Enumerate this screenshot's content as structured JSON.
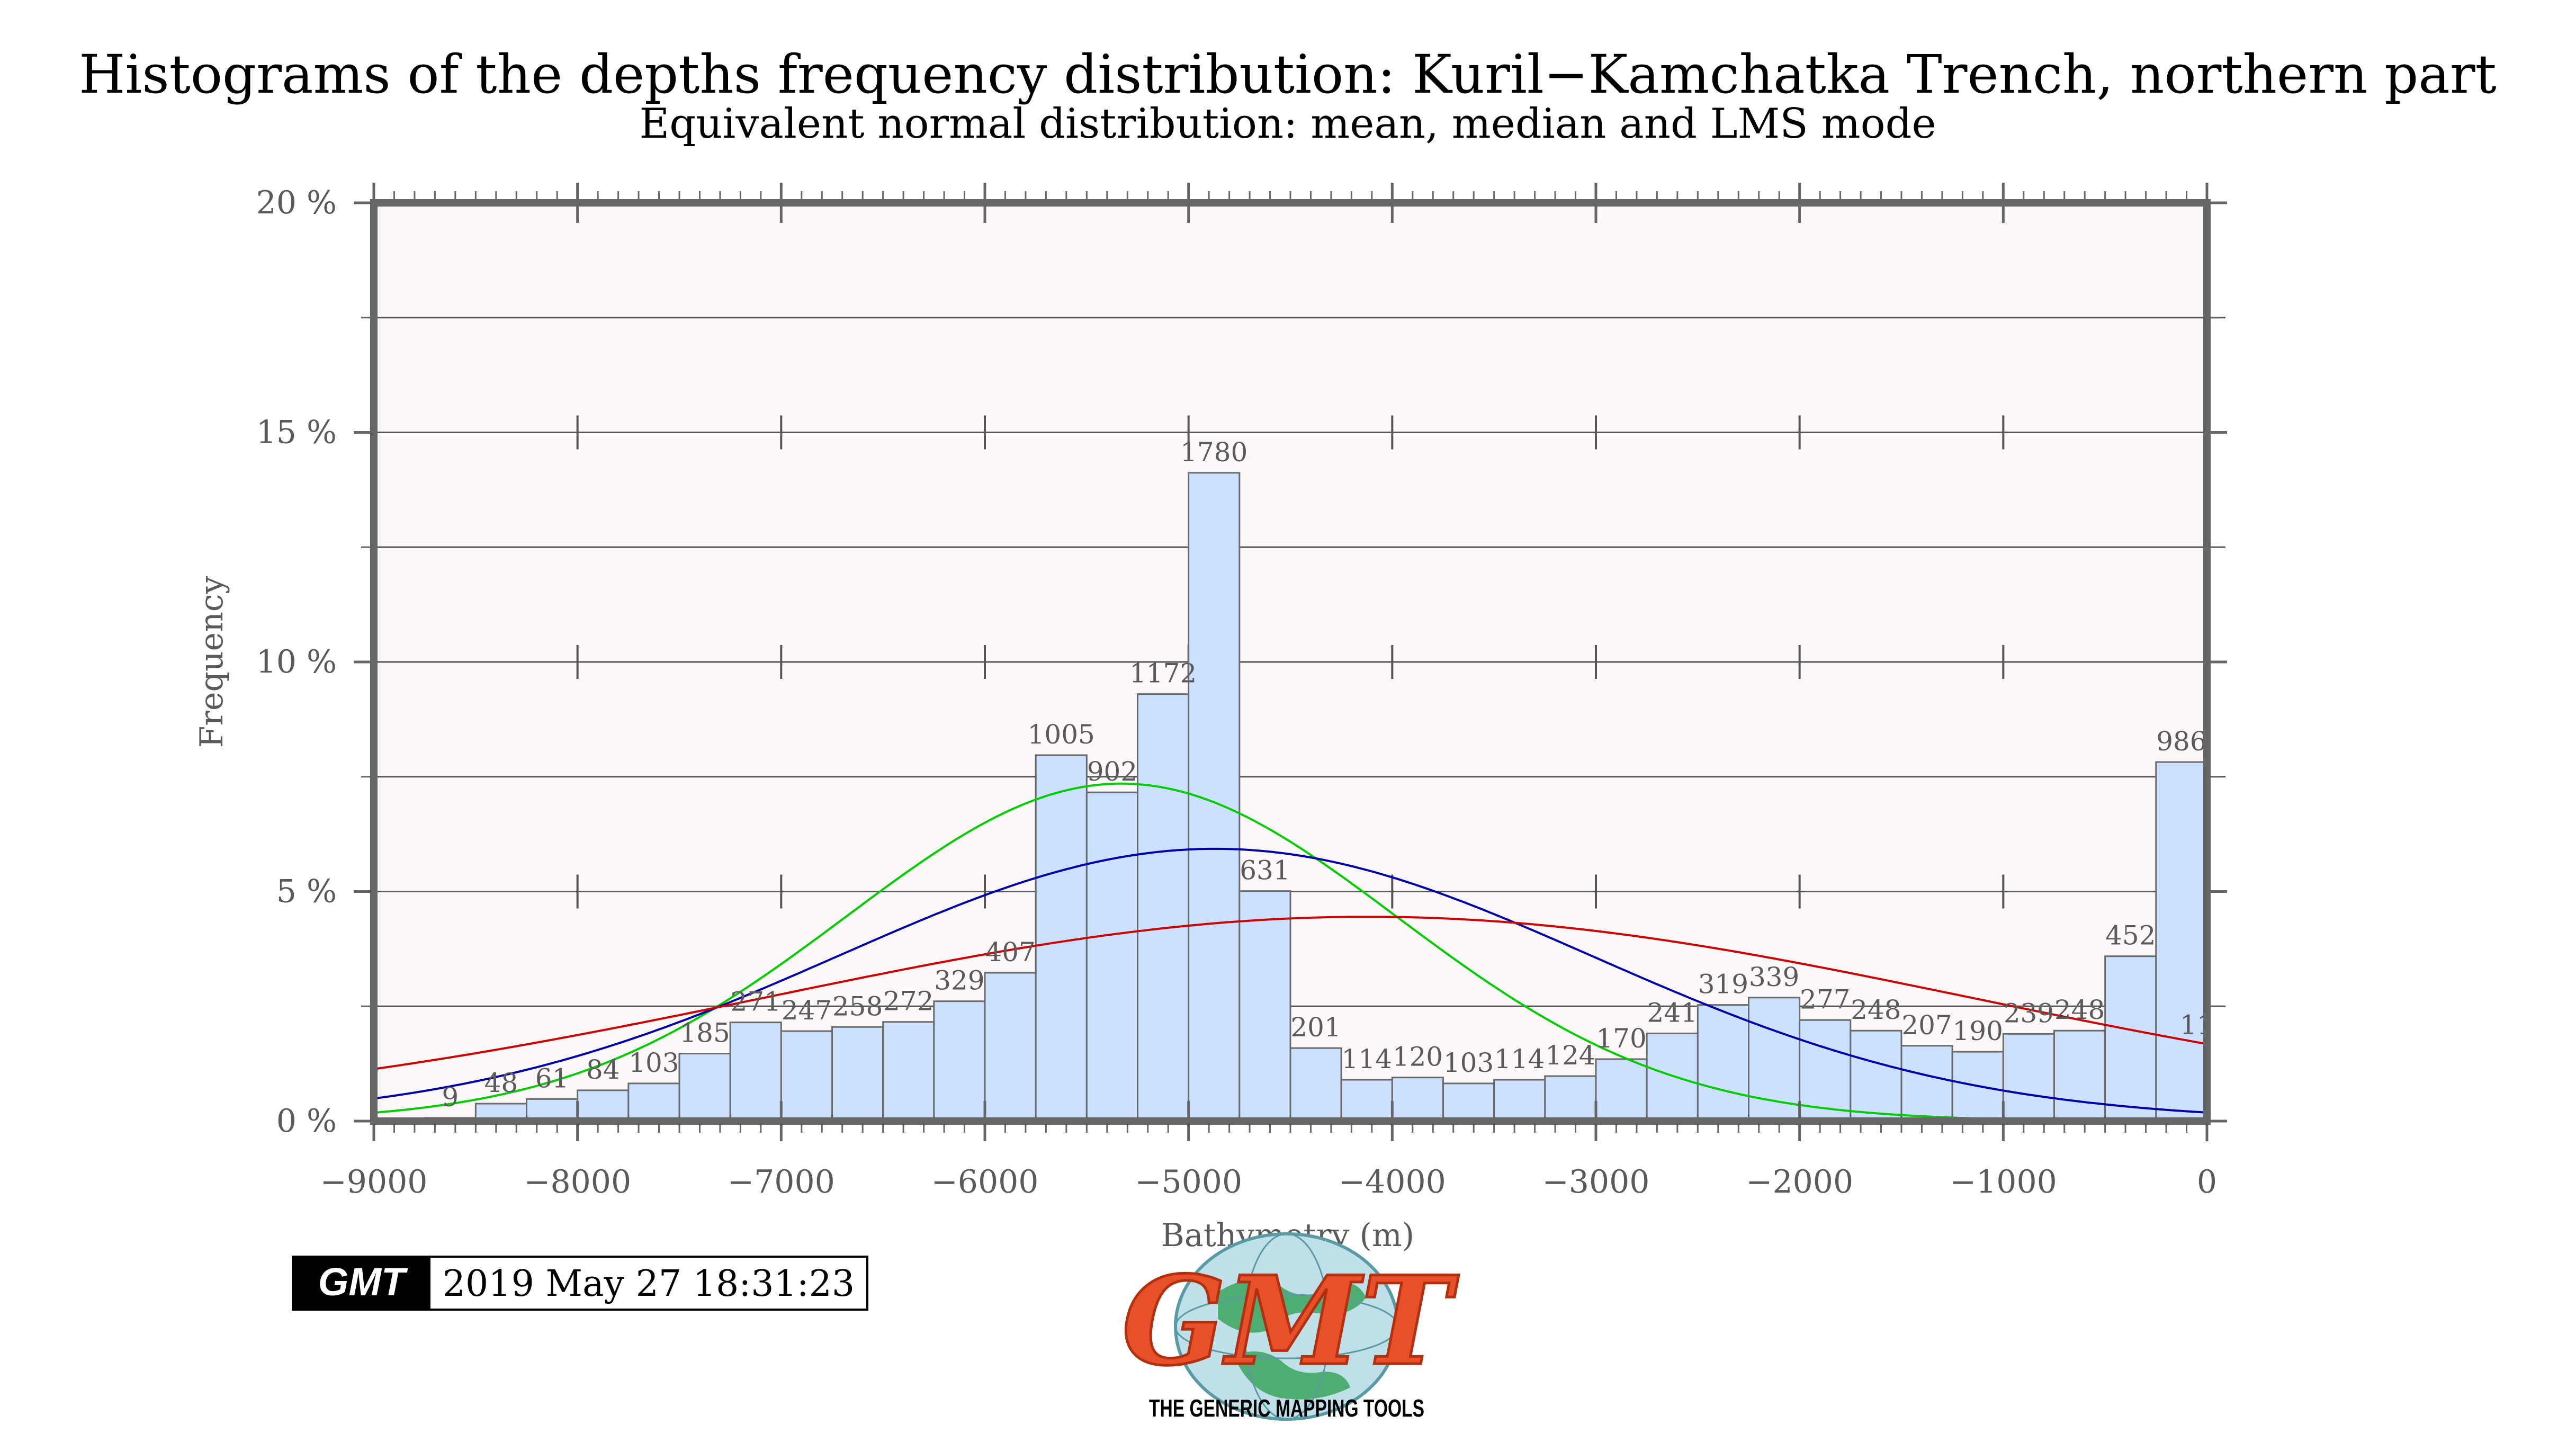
{
  "chart_data": {
    "type": "bar",
    "title": "Histograms of the depths frequency distribution: Kuril−Kamchatka Trench, northern part",
    "subtitle": "Equivalent normal distribution: mean, median and LMS mode",
    "xlabel": "Bathymetry (m)",
    "ylabel": "Frequency",
    "xlim": [
      -9000,
      0
    ],
    "ylim": [
      0,
      20
    ],
    "bin_width": 250,
    "x_ticks": [
      -9000,
      -8000,
      -7000,
      -6000,
      -5000,
      -4000,
      -3000,
      -2000,
      -1000,
      0
    ],
    "x_tick_labels": [
      "−9000",
      "−8000",
      "−7000",
      "−6000",
      "−5000",
      "−4000",
      "−3000",
      "−2000",
      "−1000",
      "0"
    ],
    "y_ticks": [
      0,
      5,
      10,
      15,
      20
    ],
    "y_tick_labels": [
      "0 %",
      "5 %",
      "10 %",
      "15 %",
      "20 %"
    ],
    "grid": true,
    "bins": [
      {
        "start": -8750,
        "end": -8500,
        "count_label": "9",
        "percent": 0.07
      },
      {
        "start": -8500,
        "end": -8250,
        "count_label": "48",
        "percent": 0.38
      },
      {
        "start": -8250,
        "end": -8000,
        "count_label": "61",
        "percent": 0.48
      },
      {
        "start": -8000,
        "end": -7750,
        "count_label": "84",
        "percent": 0.67
      },
      {
        "start": -7750,
        "end": -7500,
        "count_label": "103",
        "percent": 0.82
      },
      {
        "start": -7500,
        "end": -7250,
        "count_label": "185",
        "percent": 1.47
      },
      {
        "start": -7250,
        "end": -7000,
        "count_label": "271",
        "percent": 2.15
      },
      {
        "start": -7000,
        "end": -6750,
        "count_label": "247",
        "percent": 1.96
      },
      {
        "start": -6750,
        "end": -6500,
        "count_label": "258",
        "percent": 2.05
      },
      {
        "start": -6500,
        "end": -6250,
        "count_label": "272",
        "percent": 2.16
      },
      {
        "start": -6250,
        "end": -6000,
        "count_label": "329",
        "percent": 2.61
      },
      {
        "start": -6000,
        "end": -5750,
        "count_label": "407",
        "percent": 3.23
      },
      {
        "start": -5750,
        "end": -5500,
        "count_label": "1005",
        "percent": 7.97
      },
      {
        "start": -5500,
        "end": -5250,
        "count_label": "902",
        "percent": 7.16
      },
      {
        "start": -5250,
        "end": -5000,
        "count_label": "1172",
        "percent": 9.3
      },
      {
        "start": -5000,
        "end": -4750,
        "count_label": "1780",
        "percent": 14.12
      },
      {
        "start": -4750,
        "end": -4500,
        "count_label": "631",
        "percent": 5.01
      },
      {
        "start": -4500,
        "end": -4250,
        "count_label": "201",
        "percent": 1.59
      },
      {
        "start": -4250,
        "end": -4000,
        "count_label": "114",
        "percent": 0.9
      },
      {
        "start": -4000,
        "end": -3750,
        "count_label": "120",
        "percent": 0.95
      },
      {
        "start": -3750,
        "end": -3500,
        "count_label": "103",
        "percent": 0.82
      },
      {
        "start": -3500,
        "end": -3250,
        "count_label": "114",
        "percent": 0.9
      },
      {
        "start": -3250,
        "end": -3000,
        "count_label": "124",
        "percent": 0.98
      },
      {
        "start": -3000,
        "end": -2750,
        "count_label": "170",
        "percent": 1.35
      },
      {
        "start": -2750,
        "end": -2500,
        "count_label": "241",
        "percent": 1.91
      },
      {
        "start": -2500,
        "end": -2250,
        "count_label": "319",
        "percent": 2.53
      },
      {
        "start": -2250,
        "end": -2000,
        "count_label": "339",
        "percent": 2.69
      },
      {
        "start": -2000,
        "end": -1750,
        "count_label": "277",
        "percent": 2.2
      },
      {
        "start": -1750,
        "end": -1500,
        "count_label": "248",
        "percent": 1.97
      },
      {
        "start": -1500,
        "end": -1250,
        "count_label": "207",
        "percent": 1.64
      },
      {
        "start": -1250,
        "end": -1000,
        "count_label": "190",
        "percent": 1.51
      },
      {
        "start": -1000,
        "end": -750,
        "count_label": "239",
        "percent": 1.9
      },
      {
        "start": -750,
        "end": -500,
        "count_label": "248",
        "percent": 1.97
      },
      {
        "start": -500,
        "end": -250,
        "count_label": "452",
        "percent": 3.59
      },
      {
        "start": -250,
        "end": 0,
        "count_label": "986",
        "percent": 7.82
      }
    ],
    "extra_labels": [
      {
        "text": "11",
        "x": -50,
        "y": 1.9
      }
    ],
    "curves": [
      {
        "color": "#00cc00",
        "mean": -5330,
        "sigma": 1350,
        "peak": 7.35
      },
      {
        "color": "#0000aa",
        "mean": -4870,
        "sigma": 1850,
        "peak": 5.93
      },
      {
        "color": "#cc0000",
        "mean": -4120,
        "sigma": 2950,
        "peak": 4.45
      }
    ],
    "colors": {
      "bar_fill": "#cce0ff",
      "bar_stroke": "#6a6a6a",
      "plot_background": "#fcf8f7",
      "frame": "#666666",
      "grid": "#555555"
    }
  },
  "timestamp": {
    "logo_text": "GMT",
    "text": "2019 May 27 18:31:23"
  },
  "logo": {
    "letters": "GMT",
    "caption": "THE GENERIC MAPPING TOOLS"
  }
}
